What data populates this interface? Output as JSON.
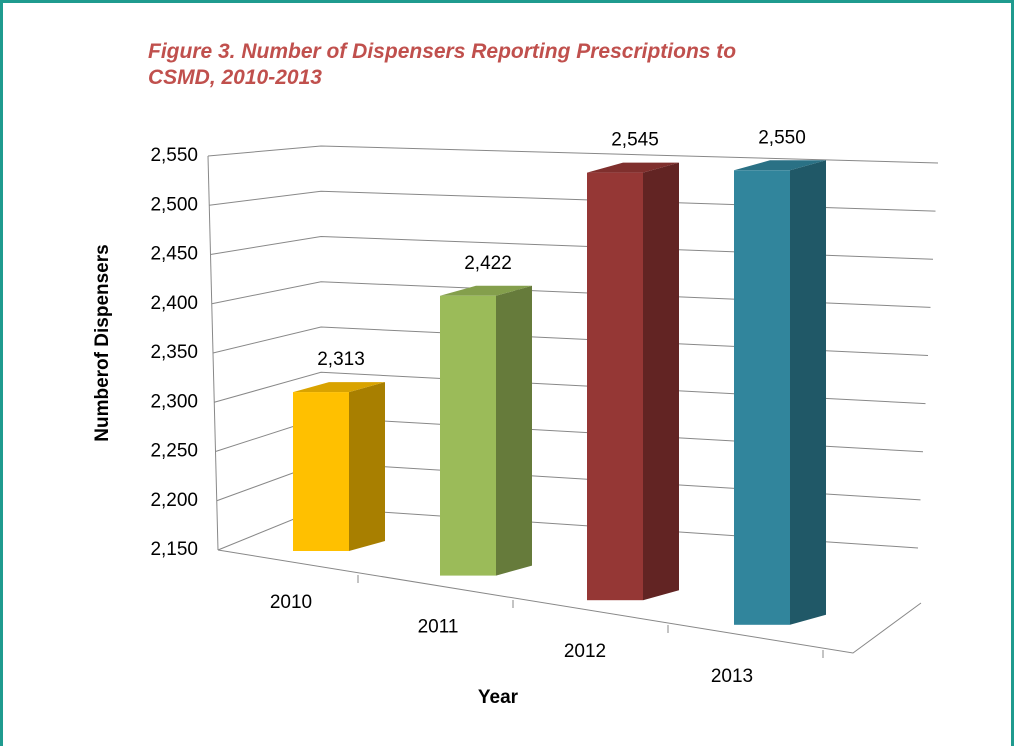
{
  "chart_data": {
    "type": "bar3d",
    "title": "Figure 3. Number of Dispensers Reporting Prescriptions to CSMD, 2010-2013",
    "categories": [
      "2010",
      "2011",
      "2012",
      "2013"
    ],
    "values": [
      2313,
      2422,
      2545,
      2550
    ],
    "value_labels": [
      "2,313",
      "2,422",
      "2,545",
      "2,550"
    ],
    "colors": [
      "#ffc000",
      "#9bbb59",
      "#953735",
      "#31859c"
    ],
    "x_label": "Year",
    "y_label": "Numberof Dispensers",
    "ylim": [
      2150,
      2550
    ],
    "yticks": [
      {
        "value": 2150,
        "label": "2,150"
      },
      {
        "value": 2200,
        "label": "2,200"
      },
      {
        "value": 2250,
        "label": "2,250"
      },
      {
        "value": 2300,
        "label": "2,300"
      },
      {
        "value": 2350,
        "label": "2,350"
      },
      {
        "value": 2400,
        "label": "2,400"
      },
      {
        "value": 2450,
        "label": "2,450"
      },
      {
        "value": 2500,
        "label": "2,500"
      },
      {
        "value": 2550,
        "label": "2,550"
      }
    ],
    "grid": true
  }
}
